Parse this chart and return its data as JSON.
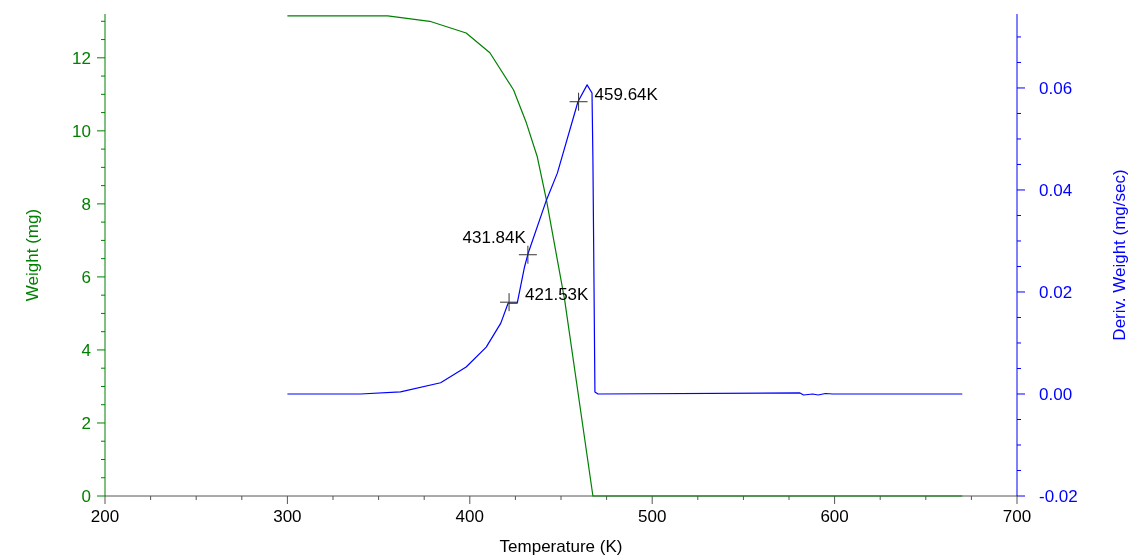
{
  "chart_data": {
    "type": "line",
    "xlabel": "Temperature (K)",
    "ylabel": "Weight (mg)",
    "y2label": "Deriv. Weight (mg/sec)",
    "xlim": [
      200,
      700
    ],
    "ylim": [
      0,
      13.2
    ],
    "y2lim": [
      -0.02,
      0.0745
    ],
    "xticks": [
      200,
      {
        "value": 225,
        "label": null
      },
      {
        "value": 250,
        "label": null
      },
      {
        "value": 275,
        "label": null
      },
      300,
      {
        "value": 325,
        "label": null
      },
      {
        "value": 350,
        "label": null
      },
      {
        "value": 375,
        "label": null
      },
      400,
      {
        "value": 425,
        "label": null
      },
      {
        "value": 450,
        "label": null
      },
      {
        "value": 475,
        "label": null
      },
      500,
      {
        "value": 525,
        "label": null
      },
      {
        "value": 550,
        "label": null
      },
      {
        "value": 575,
        "label": null
      },
      600,
      {
        "value": 625,
        "label": null
      },
      {
        "value": 650,
        "label": null
      },
      {
        "value": 675,
        "label": null
      },
      700
    ],
    "yticks": [
      0,
      {
        "value": 0.5,
        "label": null
      },
      {
        "value": 1,
        "label": null
      },
      {
        "value": 1.5,
        "label": null
      },
      2,
      {
        "value": 2.5,
        "label": null
      },
      {
        "value": 3,
        "label": null
      },
      {
        "value": 3.5,
        "label": null
      },
      4,
      {
        "value": 4.5,
        "label": null
      },
      {
        "value": 5,
        "label": null
      },
      {
        "value": 5.5,
        "label": null
      },
      6,
      {
        "value": 6.5,
        "label": null
      },
      {
        "value": 7,
        "label": null
      },
      {
        "value": 7.5,
        "label": null
      },
      8,
      {
        "value": 8.5,
        "label": null
      },
      {
        "value": 9,
        "label": null
      },
      {
        "value": 9.5,
        "label": null
      },
      10,
      {
        "value": 10.5,
        "label": null
      },
      {
        "value": 11,
        "label": null
      },
      {
        "value": 11.5,
        "label": null
      },
      12,
      {
        "value": 12.5,
        "label": null
      },
      {
        "value": 13,
        "label": null
      }
    ],
    "y2ticks": [
      {
        "value": -0.02,
        "label": "-0.02"
      },
      {
        "value": -0.015,
        "label": null
      },
      {
        "value": -0.01,
        "label": null
      },
      {
        "value": -0.005,
        "label": null
      },
      {
        "value": 0,
        "label": "0.00"
      },
      {
        "value": 0.005,
        "label": null
      },
      {
        "value": 0.01,
        "label": null
      },
      {
        "value": 0.015,
        "label": null
      },
      {
        "value": 0.02,
        "label": "0.02"
      },
      {
        "value": 0.025,
        "label": null
      },
      {
        "value": 0.03,
        "label": null
      },
      {
        "value": 0.035,
        "label": null
      },
      {
        "value": 0.04,
        "label": "0.04"
      },
      {
        "value": 0.045,
        "label": null
      },
      {
        "value": 0.05,
        "label": null
      },
      {
        "value": 0.055,
        "label": null
      },
      {
        "value": 0.06,
        "label": "0.06"
      },
      {
        "value": 0.065,
        "label": null
      },
      {
        "value": 0.07,
        "label": null
      }
    ],
    "series": [
      {
        "color": "#008000",
        "x": [
          300,
          355,
          378,
          398,
          411,
          424,
          431,
          437,
          442,
          452,
          467.5,
          670
        ],
        "values": [
          13.15,
          13.15,
          13.0,
          12.68,
          12.14,
          11.12,
          10.22,
          9.29,
          8.11,
          5.37,
          0,
          0
        ]
      },
      {
        "axis": "y2",
        "color": "#0000ff",
        "x": [
          300,
          340,
          362,
          384,
          398,
          409,
          417,
          421,
          426,
          430,
          432,
          442,
          448,
          459.3,
          464.3,
          467,
          467.5,
          468.6,
          470.3,
          581,
          583,
          588,
          591,
          595,
          599,
          670
        ],
        "values": [
          0,
          0,
          0.0004,
          0.0022,
          0.0053,
          0.0092,
          0.0139,
          0.0178,
          0.0178,
          0.0249,
          0.0276,
          0.038,
          0.0433,
          0.0573,
          0.0606,
          0.059,
          0.0459,
          0.0004,
          0,
          0.0002,
          -0.0002,
          0,
          -0.0002,
          0.0001,
          0,
          0
        ]
      },
      {
        "type": "scatter",
        "axis": "y2",
        "marker": "cross",
        "color": "#333333",
        "x": [
          421.53,
          431.84,
          459.64
        ],
        "values": [
          0.018,
          0.0273,
          0.0573
        ]
      }
    ],
    "annotations": [
      "421.53K",
      "431.84K",
      "459.64K"
    ]
  }
}
